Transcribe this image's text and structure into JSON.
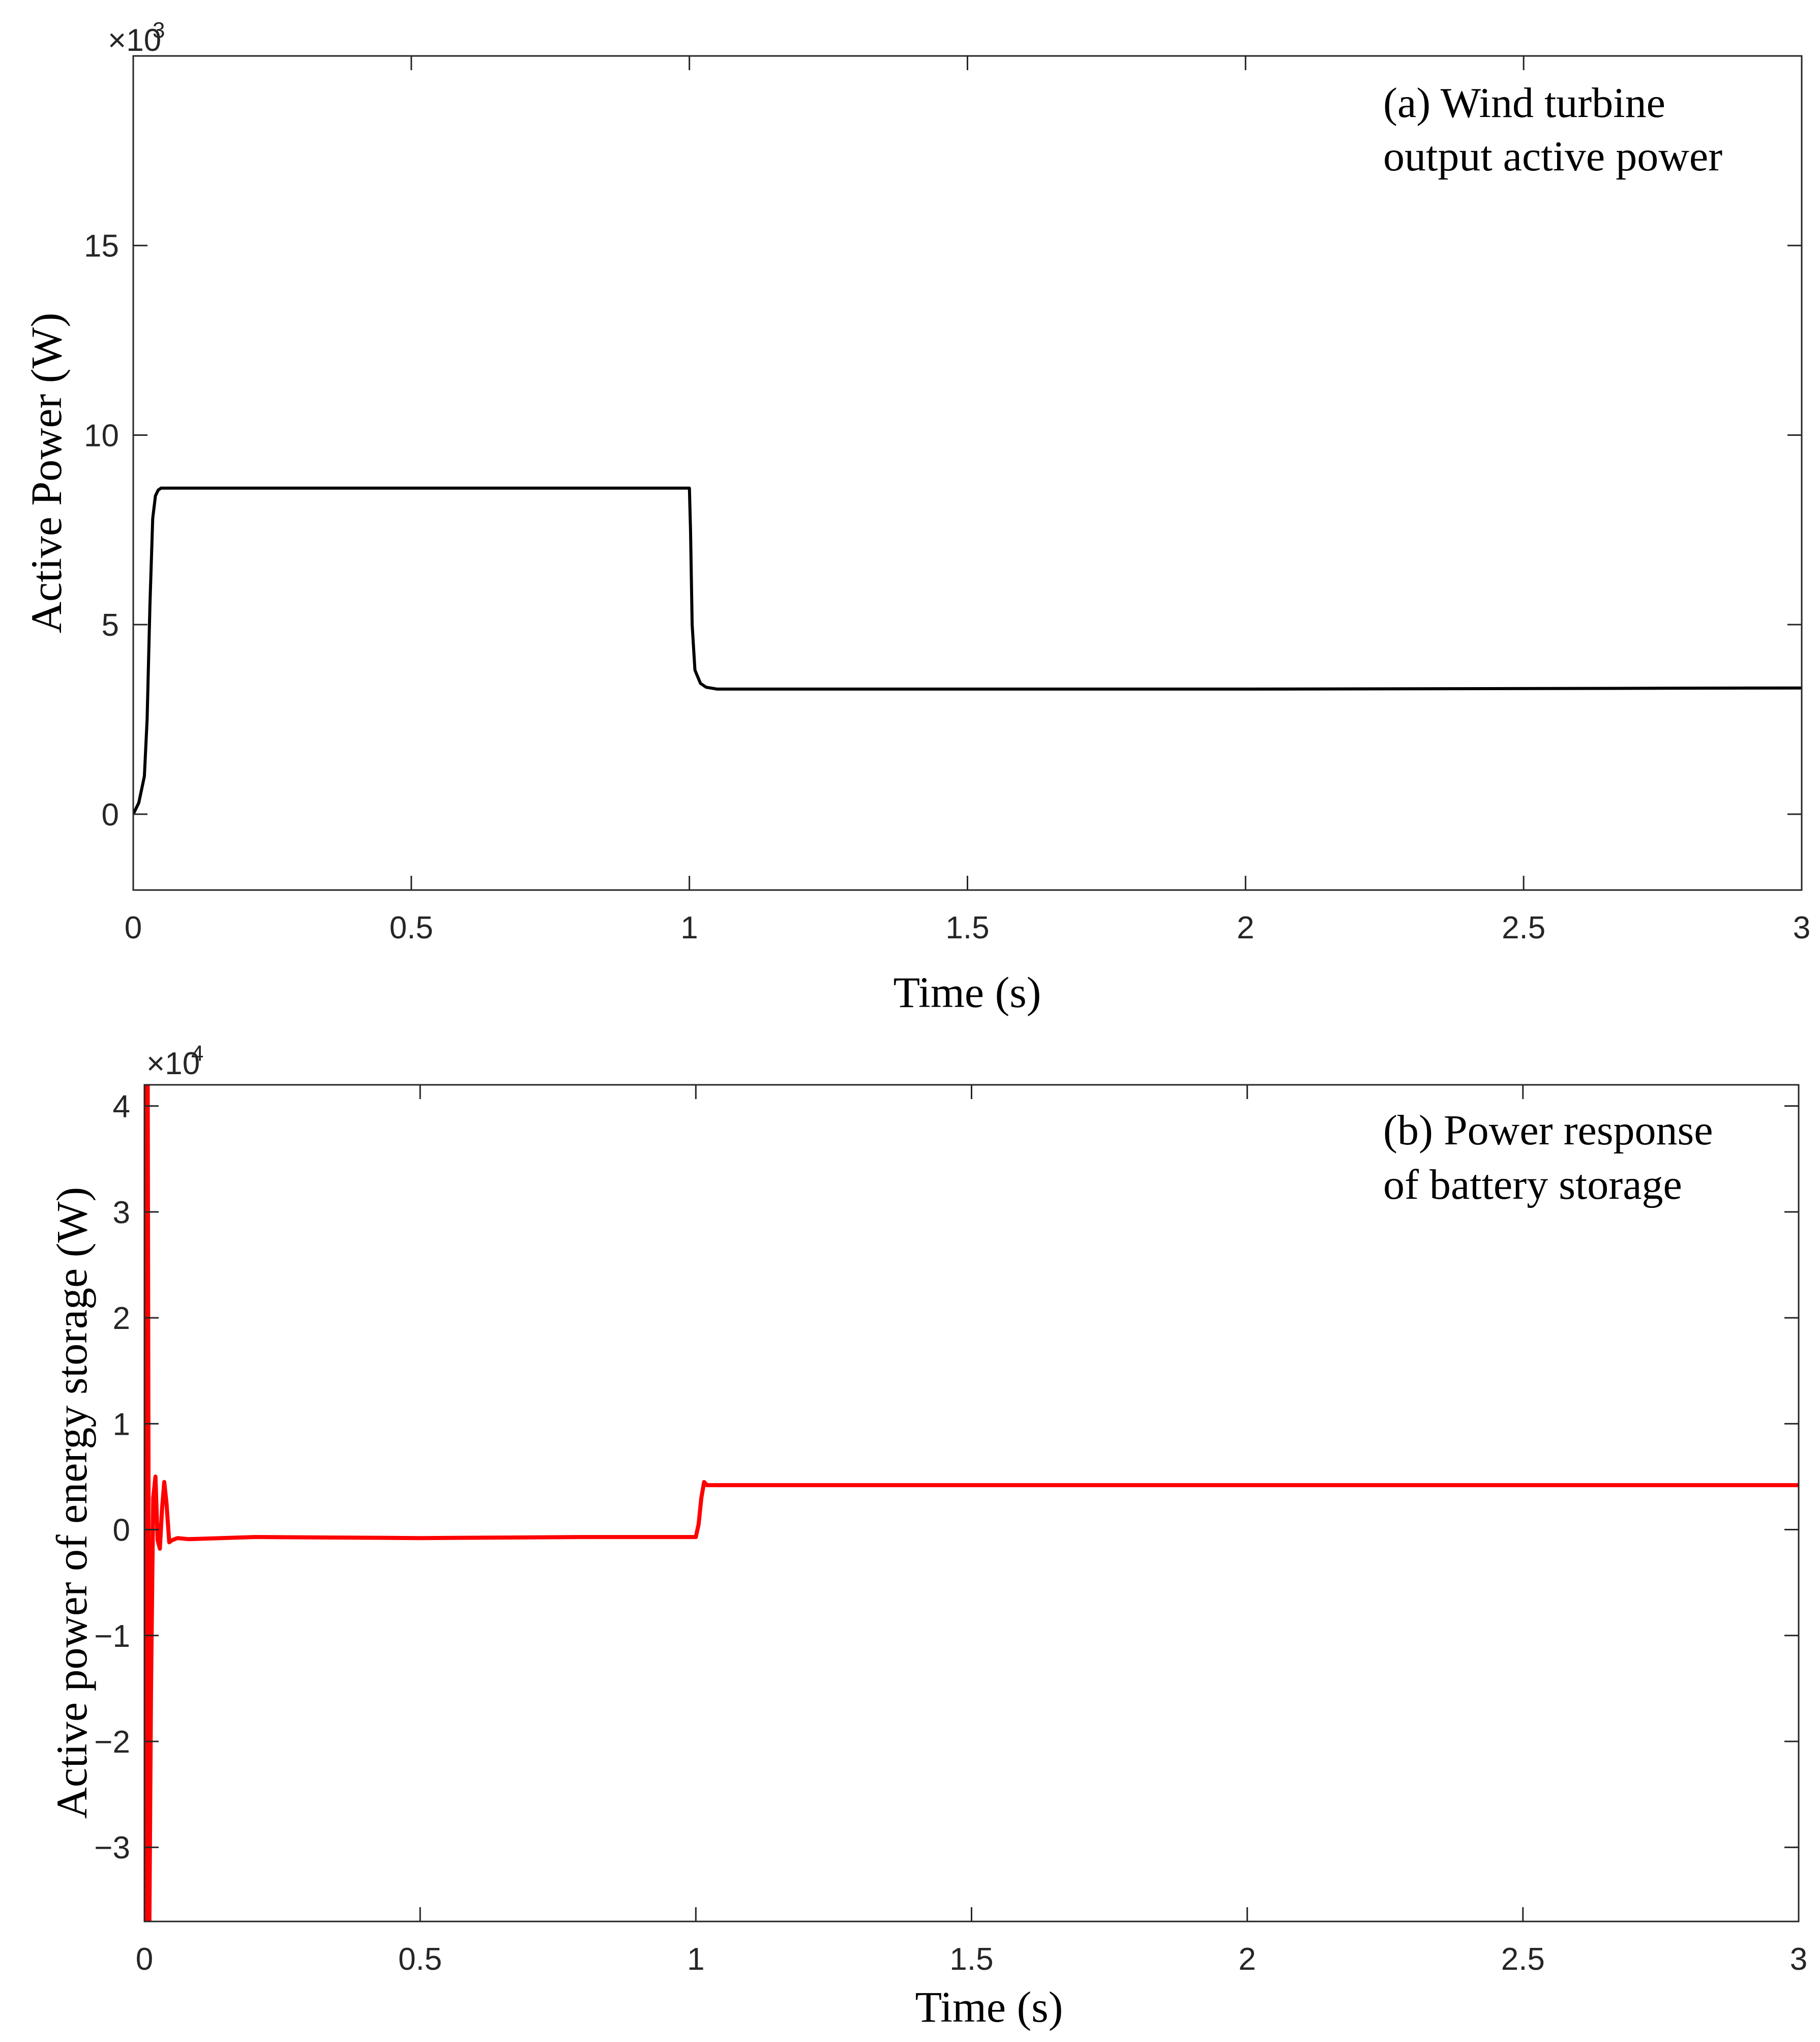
{
  "chart_data": [
    {
      "type": "line",
      "annotation": [
        "(a) Wind turbine",
        "output active power"
      ],
      "xlabel": "Time (s)",
      "ylabel": "Active Power (W)",
      "y_exponent_base": "×10",
      "y_exponent_power": "3",
      "xlim": [
        0,
        3
      ],
      "ylim": [
        -2,
        20
      ],
      "xticks": [
        0,
        0.5,
        1,
        1.5,
        2,
        2.5,
        3
      ],
      "xtick_labels": [
        "0",
        "0.5",
        "1",
        "1.5",
        "2",
        "2.5",
        "3"
      ],
      "yticks": [
        0,
        5,
        10,
        15
      ],
      "ytick_labels": [
        "0",
        "5",
        "10",
        "15"
      ],
      "grid": false,
      "series": [
        {
          "name": "Wind turbine output active power",
          "color": "#000000",
          "x": [
            0,
            0.01,
            0.02,
            0.025,
            0.03,
            0.035,
            0.04,
            0.045,
            0.05,
            0.06,
            1.0,
            1.002,
            1.005,
            1.01,
            1.02,
            1.03,
            1.05,
            1.5,
            2.0,
            3.0
          ],
          "y": [
            0,
            0.3,
            1.0,
            2.5,
            5.5,
            7.8,
            8.4,
            8.55,
            8.6,
            8.6,
            8.6,
            7.5,
            5.0,
            3.8,
            3.45,
            3.35,
            3.3,
            3.3,
            3.3,
            3.33
          ]
        }
      ]
    },
    {
      "type": "line",
      "annotation": [
        "(b) Power response",
        "of battery storage"
      ],
      "xlabel": "Time (s)",
      "ylabel": "Active power of energy storage (W)",
      "y_exponent_base": "×10",
      "y_exponent_power": "4",
      "xlim": [
        0,
        3
      ],
      "ylim": [
        -3.7,
        4.2
      ],
      "xticks": [
        0,
        0.5,
        1,
        1.5,
        2,
        2.5,
        3
      ],
      "xtick_labels": [
        "0",
        "0.5",
        "1",
        "1.5",
        "2",
        "2.5",
        "3"
      ],
      "yticks": [
        -3,
        -2,
        -1,
        0,
        1,
        2,
        3,
        4
      ],
      "ytick_labels": [
        "−3",
        "−2",
        "−1",
        "0",
        "1",
        "2",
        "3",
        "4"
      ],
      "grid": false,
      "series": [
        {
          "name": "Battery storage power response",
          "color": "#ff0000",
          "x": [
            0,
            0.003,
            0.006,
            0.009,
            0.012,
            0.016,
            0.02,
            0.024,
            0.028,
            0.032,
            0.036,
            0.04,
            0.045,
            0.05,
            0.06,
            0.08,
            0.2,
            0.5,
            0.8,
            1.0,
            1.005,
            1.01,
            1.015,
            1.02,
            1.03,
            1.5,
            2.0,
            2.5,
            3.0
          ],
          "y": [
            4.2,
            -3.7,
            4.2,
            -3.7,
            -1.5,
            0.3,
            0.5,
            -0.1,
            -0.18,
            0.2,
            0.45,
            0.25,
            -0.12,
            -0.1,
            -0.08,
            -0.09,
            -0.07,
            -0.08,
            -0.07,
            -0.07,
            0.05,
            0.3,
            0.45,
            0.42,
            0.42,
            0.42,
            0.42,
            0.42,
            0.42
          ]
        }
      ]
    }
  ]
}
